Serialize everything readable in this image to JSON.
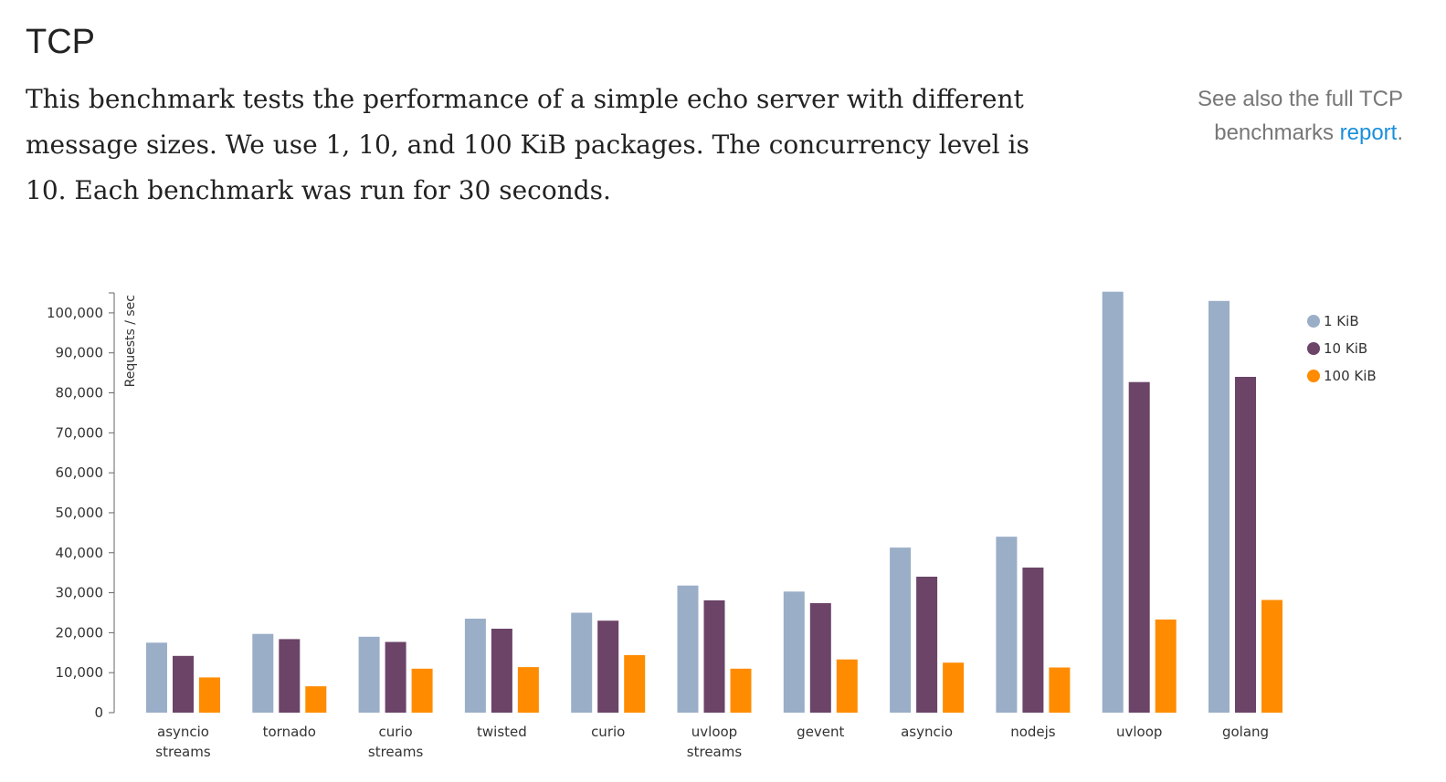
{
  "heading": "TCP",
  "intro": "This benchmark tests the performance of a simple echo server with different message sizes. We use 1, 10, and 100 KiB packages. The concurrency level is 10. Each benchmark was run for 30 seconds.",
  "aside": {
    "text": "See also the full TCP benchmarks ",
    "link": "report",
    "suffix": "."
  },
  "colors": {
    "s1": "#9aaec8",
    "s10": "#6b4468",
    "s100": "#ff8c00",
    "link": "#1a8fdc"
  },
  "chart_data": {
    "type": "bar",
    "ylabel": "Requests / sec",
    "xlabel": "",
    "ylim": [
      0,
      105000
    ],
    "yticks": [
      0,
      10000,
      20000,
      30000,
      40000,
      50000,
      60000,
      70000,
      80000,
      90000,
      100000
    ],
    "ytick_labels": [
      "0",
      "10,000",
      "20,000",
      "30,000",
      "40,000",
      "50,000",
      "60,000",
      "70,000",
      "80,000",
      "90,000",
      "100,000"
    ],
    "categories": [
      [
        "asyncio",
        "streams"
      ],
      [
        "tornado"
      ],
      [
        "curio",
        "streams"
      ],
      [
        "twisted"
      ],
      [
        "curio"
      ],
      [
        "uvloop",
        "streams"
      ],
      [
        "gevent"
      ],
      [
        "asyncio"
      ],
      [
        "nodejs"
      ],
      [
        "uvloop"
      ],
      [
        "golang"
      ]
    ],
    "series": [
      {
        "name": "1 KiB",
        "color": "#9aaec8",
        "values": [
          17500,
          19700,
          19000,
          23500,
          25000,
          31800,
          30300,
          41300,
          44000,
          105300,
          103000
        ]
      },
      {
        "name": "10 KiB",
        "color": "#6b4468",
        "values": [
          14200,
          18400,
          17700,
          21000,
          23000,
          28100,
          27400,
          34000,
          36300,
          82700,
          84000
        ]
      },
      {
        "name": "100 KiB",
        "color": "#ff8c00",
        "values": [
          8800,
          6600,
          11000,
          11400,
          14400,
          11000,
          13300,
          12500,
          11300,
          23300,
          28200
        ]
      }
    ],
    "legend_position": "top-right",
    "grid": false
  }
}
